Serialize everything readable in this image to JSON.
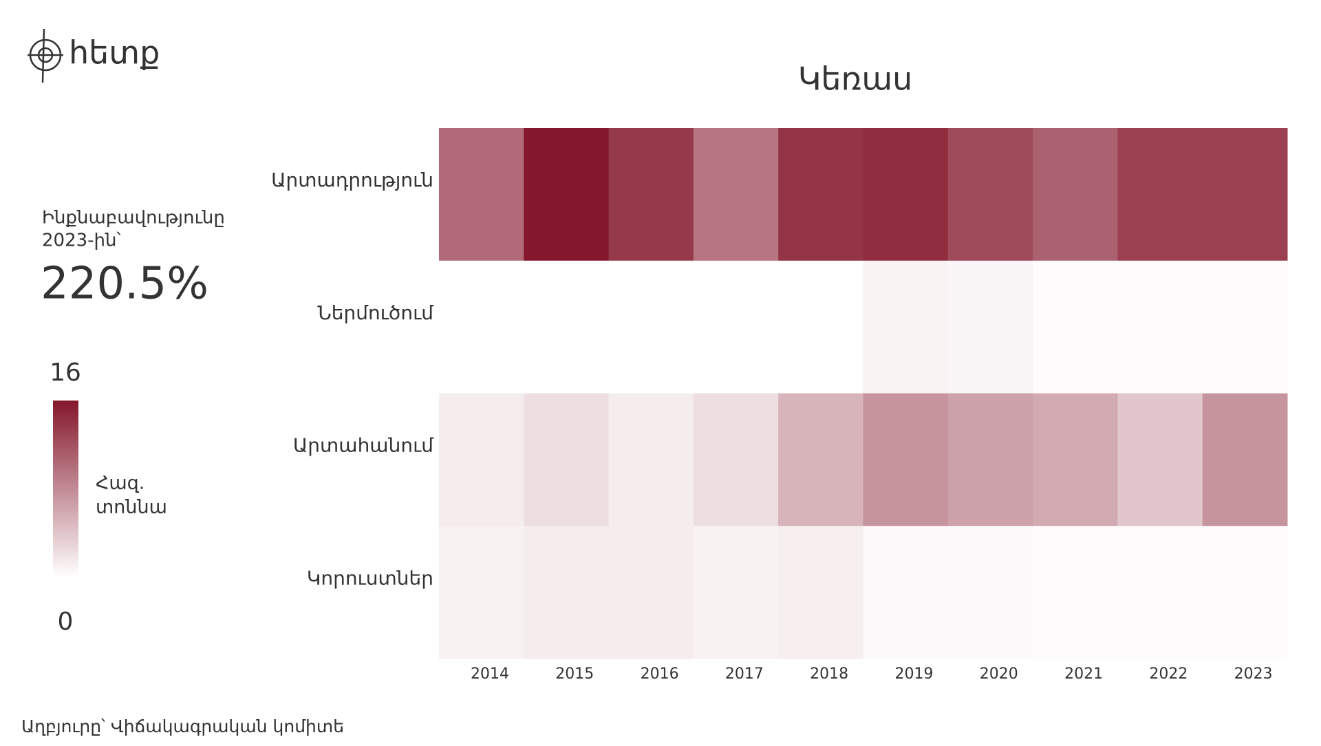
{
  "logo": {
    "text": "հետք"
  },
  "kpi": {
    "label_lines": [
      "Ինքնաբավությունը",
      "2023-ին՝"
    ],
    "value": "220.5%"
  },
  "source": "Աղբյուրը՝ Վիճակագրական կոմիտե",
  "chart_data": {
    "type": "heatmap",
    "title": "Կեռաս",
    "x": [
      "2014",
      "2015",
      "2016",
      "2017",
      "2018",
      "2019",
      "2020",
      "2021",
      "2022",
      "2023"
    ],
    "categories": [
      "Արտադրություն",
      "Ներմուծում",
      "Արտահանում",
      "Կորուստներ"
    ],
    "values": [
      [
        10.2,
        16,
        13.6,
        9.5,
        13.9,
        14.4,
        12.4,
        10.9,
        13.2,
        13.2
      ],
      [
        0,
        0,
        0,
        0,
        0,
        0.8,
        0.7,
        0.3,
        0.3,
        0.3
      ],
      [
        1.3,
        2.3,
        1.3,
        2.3,
        5.2,
        7.4,
        6.5,
        5.8,
        3.9,
        7.4
      ],
      [
        0.9,
        1.3,
        1.3,
        0.9,
        1.2,
        0.4,
        0.4,
        0.3,
        0.3,
        0.3
      ]
    ],
    "colorscale": [
      "#ffffff",
      "#84172b"
    ],
    "zlim": [
      0,
      16
    ],
    "zticks": [
      0,
      16
    ],
    "colorbar_title_lines": [
      "Հազ.",
      "տոննա"
    ]
  }
}
